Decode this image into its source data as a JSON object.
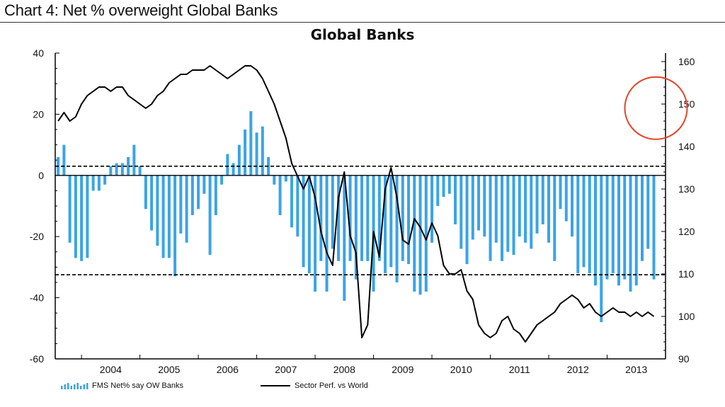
{
  "header": {
    "title": "Chart 4: Net % overweight Global Banks"
  },
  "colors": {
    "bars": "#3aa3e8",
    "line": "#000000",
    "highlight_circle": "#e0452b"
  },
  "chart_data": {
    "type": "bar",
    "title": "Global Banks",
    "x_tick_labels": [
      "2004",
      "2005",
      "2006",
      "2007",
      "2008",
      "2009",
      "2010",
      "2011",
      "2012",
      "2013"
    ],
    "left_axis": {
      "ylim": [
        -60,
        40
      ],
      "ticks": [
        -60,
        -40,
        -20,
        0,
        20,
        40
      ]
    },
    "right_axis": {
      "ylim": [
        90,
        162
      ],
      "ticks": [
        90,
        100,
        110,
        120,
        130,
        140,
        150,
        160
      ]
    },
    "reference_lines_left": [
      3,
      -32.5
    ],
    "legend": {
      "bars_label": "FMS Net% say OW Banks",
      "line_label": "Sector Perf. vs World",
      "position": "bottom-left"
    },
    "series": [
      {
        "name": "FMS Net% say OW Banks",
        "axis": "left",
        "type": "bar",
        "x": [
          2003.6,
          2003.7,
          2003.8,
          2003.9,
          2004.0,
          2004.1,
          2004.2,
          2004.3,
          2004.4,
          2004.5,
          2004.6,
          2004.7,
          2004.8,
          2004.9,
          2005.0,
          2005.1,
          2005.2,
          2005.3,
          2005.4,
          2005.5,
          2005.6,
          2005.7,
          2005.8,
          2005.9,
          2006.0,
          2006.1,
          2006.2,
          2006.3,
          2006.4,
          2006.5,
          2006.6,
          2006.7,
          2006.8,
          2006.9,
          2007.0,
          2007.1,
          2007.2,
          2007.3,
          2007.4,
          2007.5,
          2007.6,
          2007.7,
          2007.8,
          2007.9,
          2008.0,
          2008.1,
          2008.2,
          2008.3,
          2008.4,
          2008.5,
          2008.6,
          2008.7,
          2008.8,
          2008.9,
          2009.0,
          2009.1,
          2009.2,
          2009.3,
          2009.4,
          2009.5,
          2009.6,
          2009.7,
          2009.8,
          2009.9,
          2010.0,
          2010.1,
          2010.2,
          2010.3,
          2010.4,
          2010.5,
          2010.6,
          2010.7,
          2010.8,
          2010.9,
          2011.0,
          2011.1,
          2011.2,
          2011.3,
          2011.4,
          2011.5,
          2011.6,
          2011.7,
          2011.8,
          2011.9,
          2012.0,
          2012.1,
          2012.2,
          2012.3,
          2012.4,
          2012.5,
          2012.6,
          2012.7,
          2012.8,
          2012.9,
          2013.0,
          2013.1,
          2013.2,
          2013.3,
          2013.4,
          2013.5,
          2013.6,
          2013.7,
          2013.8
        ],
        "values": [
          6,
          10,
          -22,
          -27,
          -28,
          -27,
          -5,
          -5,
          -3,
          3,
          4,
          4,
          6,
          10,
          3,
          -11,
          -18,
          -23,
          -27,
          -27,
          -33,
          -19,
          -22,
          -13,
          -11,
          -6,
          -26,
          -13,
          -3,
          7,
          4,
          10,
          15,
          21,
          14,
          16,
          6,
          -3,
          -13,
          -2,
          -17,
          -20,
          -30,
          -32,
          -38,
          -28,
          -38,
          -24,
          -28,
          -41,
          -28,
          -34,
          -28,
          -28,
          -38,
          -28,
          -32,
          -30,
          -35,
          -28,
          -29,
          -38,
          -39,
          -38,
          -22,
          -10,
          -7,
          -6,
          -16,
          -24,
          -29,
          -21,
          -18,
          -20,
          -28,
          -22,
          -28,
          -25,
          -26,
          -20,
          -22,
          -24,
          -19,
          -16,
          -22,
          -28,
          -11,
          -15,
          -20,
          -32,
          -30,
          -32,
          -36,
          -48,
          -34,
          -32,
          -36,
          -34,
          -38,
          -36,
          -28,
          -24,
          -34
        ]
      },
      {
        "name": "Sector Perf. vs World",
        "axis": "right",
        "type": "line",
        "x": [
          2003.6,
          2003.7,
          2003.8,
          2003.9,
          2004.0,
          2004.1,
          2004.2,
          2004.3,
          2004.4,
          2004.5,
          2004.6,
          2004.7,
          2004.8,
          2004.9,
          2005.0,
          2005.1,
          2005.2,
          2005.3,
          2005.4,
          2005.5,
          2005.6,
          2005.7,
          2005.8,
          2005.9,
          2006.0,
          2006.1,
          2006.2,
          2006.3,
          2006.4,
          2006.5,
          2006.6,
          2006.7,
          2006.8,
          2006.9,
          2007.0,
          2007.1,
          2007.2,
          2007.3,
          2007.4,
          2007.5,
          2007.6,
          2007.7,
          2007.8,
          2007.9,
          2008.0,
          2008.1,
          2008.2,
          2008.3,
          2008.4,
          2008.5,
          2008.6,
          2008.7,
          2008.8,
          2008.9,
          2009.0,
          2009.1,
          2009.2,
          2009.3,
          2009.4,
          2009.5,
          2009.6,
          2009.7,
          2009.8,
          2009.9,
          2010.0,
          2010.1,
          2010.2,
          2010.3,
          2010.4,
          2010.5,
          2010.6,
          2010.7,
          2010.8,
          2010.9,
          2011.0,
          2011.1,
          2011.2,
          2011.3,
          2011.4,
          2011.5,
          2011.6,
          2011.7,
          2011.8,
          2011.9,
          2012.0,
          2012.1,
          2012.2,
          2012.3,
          2012.4,
          2012.5,
          2012.6,
          2012.7,
          2012.8,
          2012.9,
          2013.0,
          2013.1,
          2013.2,
          2013.3,
          2013.4,
          2013.5,
          2013.6,
          2013.7,
          2013.8
        ],
        "values": [
          146,
          148,
          146,
          147,
          150,
          152,
          153,
          154,
          154,
          153,
          154,
          154,
          152,
          151,
          150,
          149,
          150,
          152,
          153,
          155,
          156,
          157,
          157,
          158,
          158,
          158,
          159,
          158,
          157,
          156,
          157,
          158,
          159,
          159,
          158,
          156,
          153,
          150,
          146,
          142,
          136,
          133,
          130,
          133,
          128,
          120,
          115,
          112,
          128,
          134,
          119,
          115,
          95,
          98,
          120,
          114,
          130,
          135,
          128,
          118,
          117,
          123,
          121,
          118,
          122,
          119,
          112,
          110,
          110,
          111,
          106,
          104,
          98,
          96,
          95,
          96,
          99,
          100,
          97,
          96,
          94,
          96,
          98,
          99,
          100,
          101,
          103,
          104,
          105,
          104,
          102,
          103,
          101,
          100,
          101,
          102,
          101,
          101,
          100,
          101,
          100,
          101,
          100
        ]
      }
    ]
  }
}
